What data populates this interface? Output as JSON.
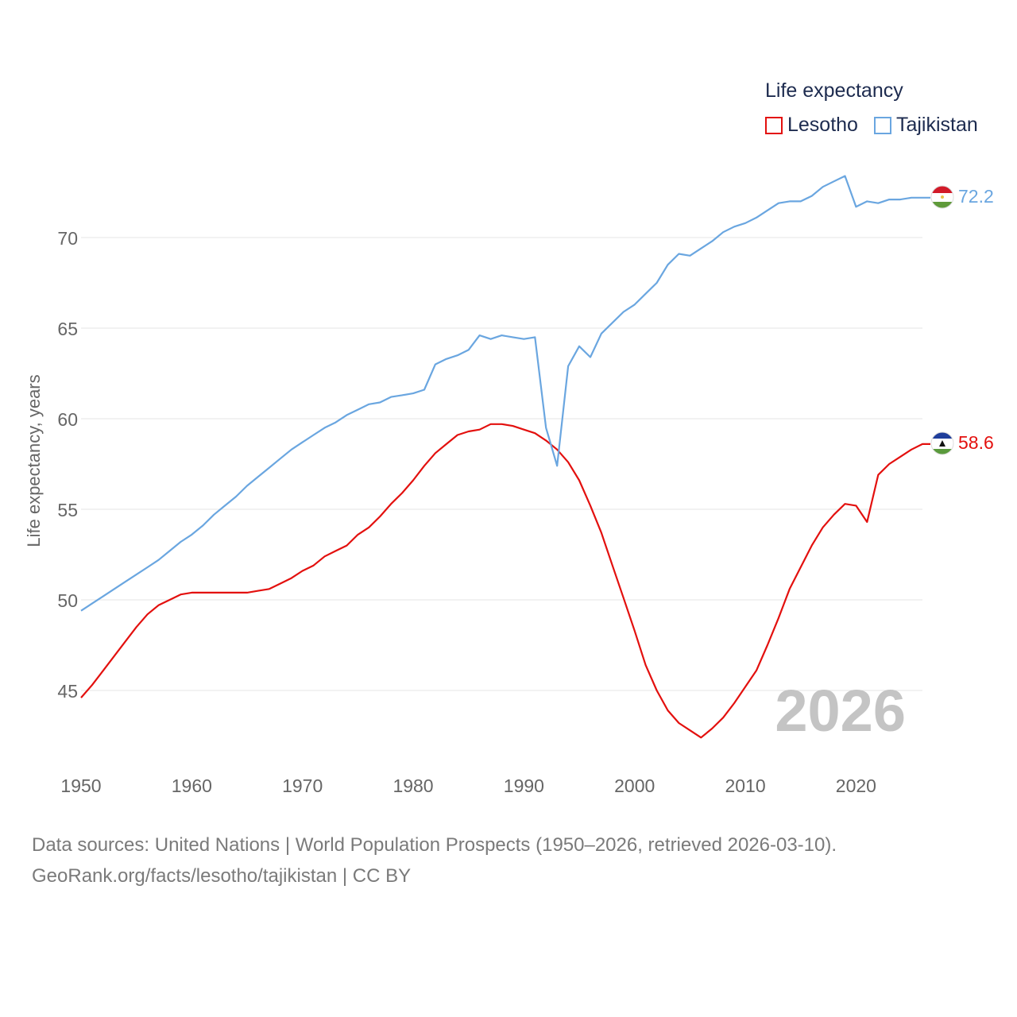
{
  "legend": {
    "title": "Life expectancy",
    "items": [
      {
        "label": "Lesotho",
        "color": "#e3100e"
      },
      {
        "label": "Tajikistan",
        "color": "#6aa6e0"
      }
    ]
  },
  "footer": {
    "line1": "Data sources: United Nations | World Population Prospects (1950–2026, retrieved 2026-03-10).",
    "line2": "GeoRank.org/facts/lesotho/tajikistan | CC BY"
  },
  "chart_data": {
    "type": "line",
    "title": "Life expectancy",
    "ylabel": "Life expectancy, years",
    "xlabel": "",
    "year_watermark": "2026",
    "xlim": [
      1950,
      2026
    ],
    "ylim": [
      42.6,
      74.5
    ],
    "xticks": [
      1950,
      1960,
      1970,
      1980,
      1990,
      2000,
      2010,
      2020
    ],
    "yticks": [
      45,
      50,
      55,
      60,
      65,
      70
    ],
    "grid": true,
    "legend_position": "top-right",
    "series": [
      {
        "name": "Lesotho",
        "color": "#e3100e",
        "end_label": "58.6",
        "x": [
          1950,
          1951,
          1952,
          1953,
          1954,
          1955,
          1956,
          1957,
          1958,
          1959,
          1960,
          1961,
          1962,
          1963,
          1964,
          1965,
          1966,
          1967,
          1968,
          1969,
          1970,
          1971,
          1972,
          1973,
          1974,
          1975,
          1976,
          1977,
          1978,
          1979,
          1980,
          1981,
          1982,
          1983,
          1984,
          1985,
          1986,
          1987,
          1988,
          1989,
          1990,
          1991,
          1992,
          1993,
          1994,
          1995,
          1996,
          1997,
          1998,
          1999,
          2000,
          2001,
          2002,
          2003,
          2004,
          2005,
          2006,
          2007,
          2008,
          2009,
          2010,
          2011,
          2012,
          2013,
          2014,
          2015,
          2016,
          2017,
          2018,
          2019,
          2020,
          2021,
          2022,
          2023,
          2024,
          2025,
          2026
        ],
        "values": [
          44.6,
          45.3,
          46.1,
          46.9,
          47.7,
          48.5,
          49.2,
          49.7,
          50.0,
          50.3,
          50.4,
          50.4,
          50.4,
          50.4,
          50.4,
          50.4,
          50.5,
          50.6,
          50.9,
          51.2,
          51.6,
          51.9,
          52.4,
          52.7,
          53.0,
          53.6,
          54.0,
          54.6,
          55.3,
          55.9,
          56.6,
          57.4,
          58.1,
          58.6,
          59.1,
          59.3,
          59.4,
          59.7,
          59.7,
          59.6,
          59.4,
          59.2,
          58.8,
          58.3,
          57.6,
          56.6,
          55.2,
          53.7,
          51.9,
          50.1,
          48.3,
          46.4,
          45.0,
          43.9,
          43.2,
          42.8,
          42.4,
          42.9,
          43.5,
          44.3,
          45.2,
          46.1,
          47.5,
          49.0,
          50.6,
          51.8,
          53.0,
          54.0,
          54.7,
          55.3,
          55.2,
          54.3,
          56.9,
          57.5,
          57.9,
          58.3,
          58.6
        ]
      },
      {
        "name": "Tajikistan",
        "color": "#6aa6e0",
        "end_label": "72.2",
        "x": [
          1950,
          1951,
          1952,
          1953,
          1954,
          1955,
          1956,
          1957,
          1958,
          1959,
          1960,
          1961,
          1962,
          1963,
          1964,
          1965,
          1966,
          1967,
          1968,
          1969,
          1970,
          1971,
          1972,
          1973,
          1974,
          1975,
          1976,
          1977,
          1978,
          1979,
          1980,
          1981,
          1982,
          1983,
          1984,
          1985,
          1986,
          1987,
          1988,
          1989,
          1990,
          1991,
          1992,
          1993,
          1994,
          1995,
          1996,
          1997,
          1998,
          1999,
          2000,
          2001,
          2002,
          2003,
          2004,
          2005,
          2006,
          2007,
          2008,
          2009,
          2010,
          2011,
          2012,
          2013,
          2014,
          2015,
          2016,
          2017,
          2018,
          2019,
          2020,
          2021,
          2022,
          2023,
          2024,
          2025,
          2026
        ],
        "values": [
          49.4,
          49.8,
          50.2,
          50.6,
          51.0,
          51.4,
          51.8,
          52.2,
          52.7,
          53.2,
          53.6,
          54.1,
          54.7,
          55.2,
          55.7,
          56.3,
          56.8,
          57.3,
          57.8,
          58.3,
          58.7,
          59.1,
          59.5,
          59.8,
          60.2,
          60.5,
          60.8,
          60.9,
          61.2,
          61.3,
          61.4,
          61.6,
          63.0,
          63.3,
          63.5,
          63.8,
          64.6,
          64.4,
          64.6,
          64.5,
          64.4,
          64.5,
          59.5,
          57.4,
          62.9,
          64.0,
          63.4,
          64.7,
          65.3,
          65.9,
          66.3,
          66.9,
          67.5,
          68.5,
          69.1,
          69.0,
          69.4,
          69.8,
          70.3,
          70.6,
          70.8,
          71.1,
          71.5,
          71.9,
          72.0,
          72.0,
          72.3,
          72.8,
          73.1,
          73.4,
          71.7,
          72.0,
          71.9,
          72.1,
          72.1,
          72.2,
          72.2
        ]
      }
    ]
  }
}
